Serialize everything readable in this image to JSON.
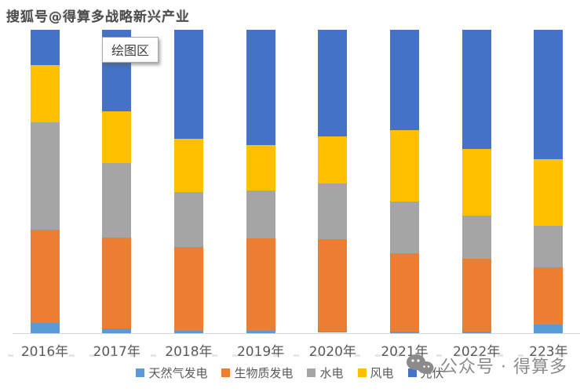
{
  "watermark": {
    "sohu": "搜狐号@得算多战略新兴产业"
  },
  "tooltip": {
    "label": "绘图区"
  },
  "footer": {
    "wechat_label": "公众号 · 得算多"
  },
  "colors": {
    "natural_gas": "#5B9BD5",
    "biomass": "#ED7D31",
    "hydro": "#A5A5A5",
    "wind": "#FFC000",
    "solar_pv": "#4472C4",
    "axis_line": "#D6D6D6",
    "label_text": "#595959",
    "wechat_gray": "#8B8B8B"
  },
  "chart_data": {
    "type": "bar",
    "stacked": true,
    "percent_stacked": true,
    "title": "",
    "xlabel": "",
    "ylabel": "",
    "ylim": [
      0,
      100
    ],
    "grid": false,
    "legend_position": "bottom",
    "categories": [
      "2016年",
      "2017年",
      "2018年",
      "2019年",
      "2020年",
      "2021年",
      "2022年",
      "223年"
    ],
    "series": [
      {
        "name": "天然气发电",
        "color": "#5B9BD5",
        "values": [
          3.4,
          1.6,
          0.8,
          0.8,
          0.5,
          0.5,
          0.5,
          2.8
        ]
      },
      {
        "name": "生物质发电",
        "color": "#ED7D31",
        "values": [
          30.7,
          30.0,
          27.6,
          30.5,
          30.5,
          25.8,
          24.0,
          18.9
        ]
      },
      {
        "name": "水电",
        "color": "#A5A5A5",
        "values": [
          35.4,
          24.5,
          18.1,
          15.8,
          18.3,
          17.1,
          14.2,
          13.7
        ]
      },
      {
        "name": "风电",
        "color": "#FFC000",
        "values": [
          18.9,
          17.1,
          17.6,
          15.0,
          15.5,
          23.5,
          22.0,
          22.0
        ]
      },
      {
        "name": "光伏",
        "color": "#4472C4",
        "values": [
          11.6,
          26.9,
          35.9,
          38.0,
          35.1,
          33.1,
          39.3,
          42.6
        ]
      }
    ]
  }
}
